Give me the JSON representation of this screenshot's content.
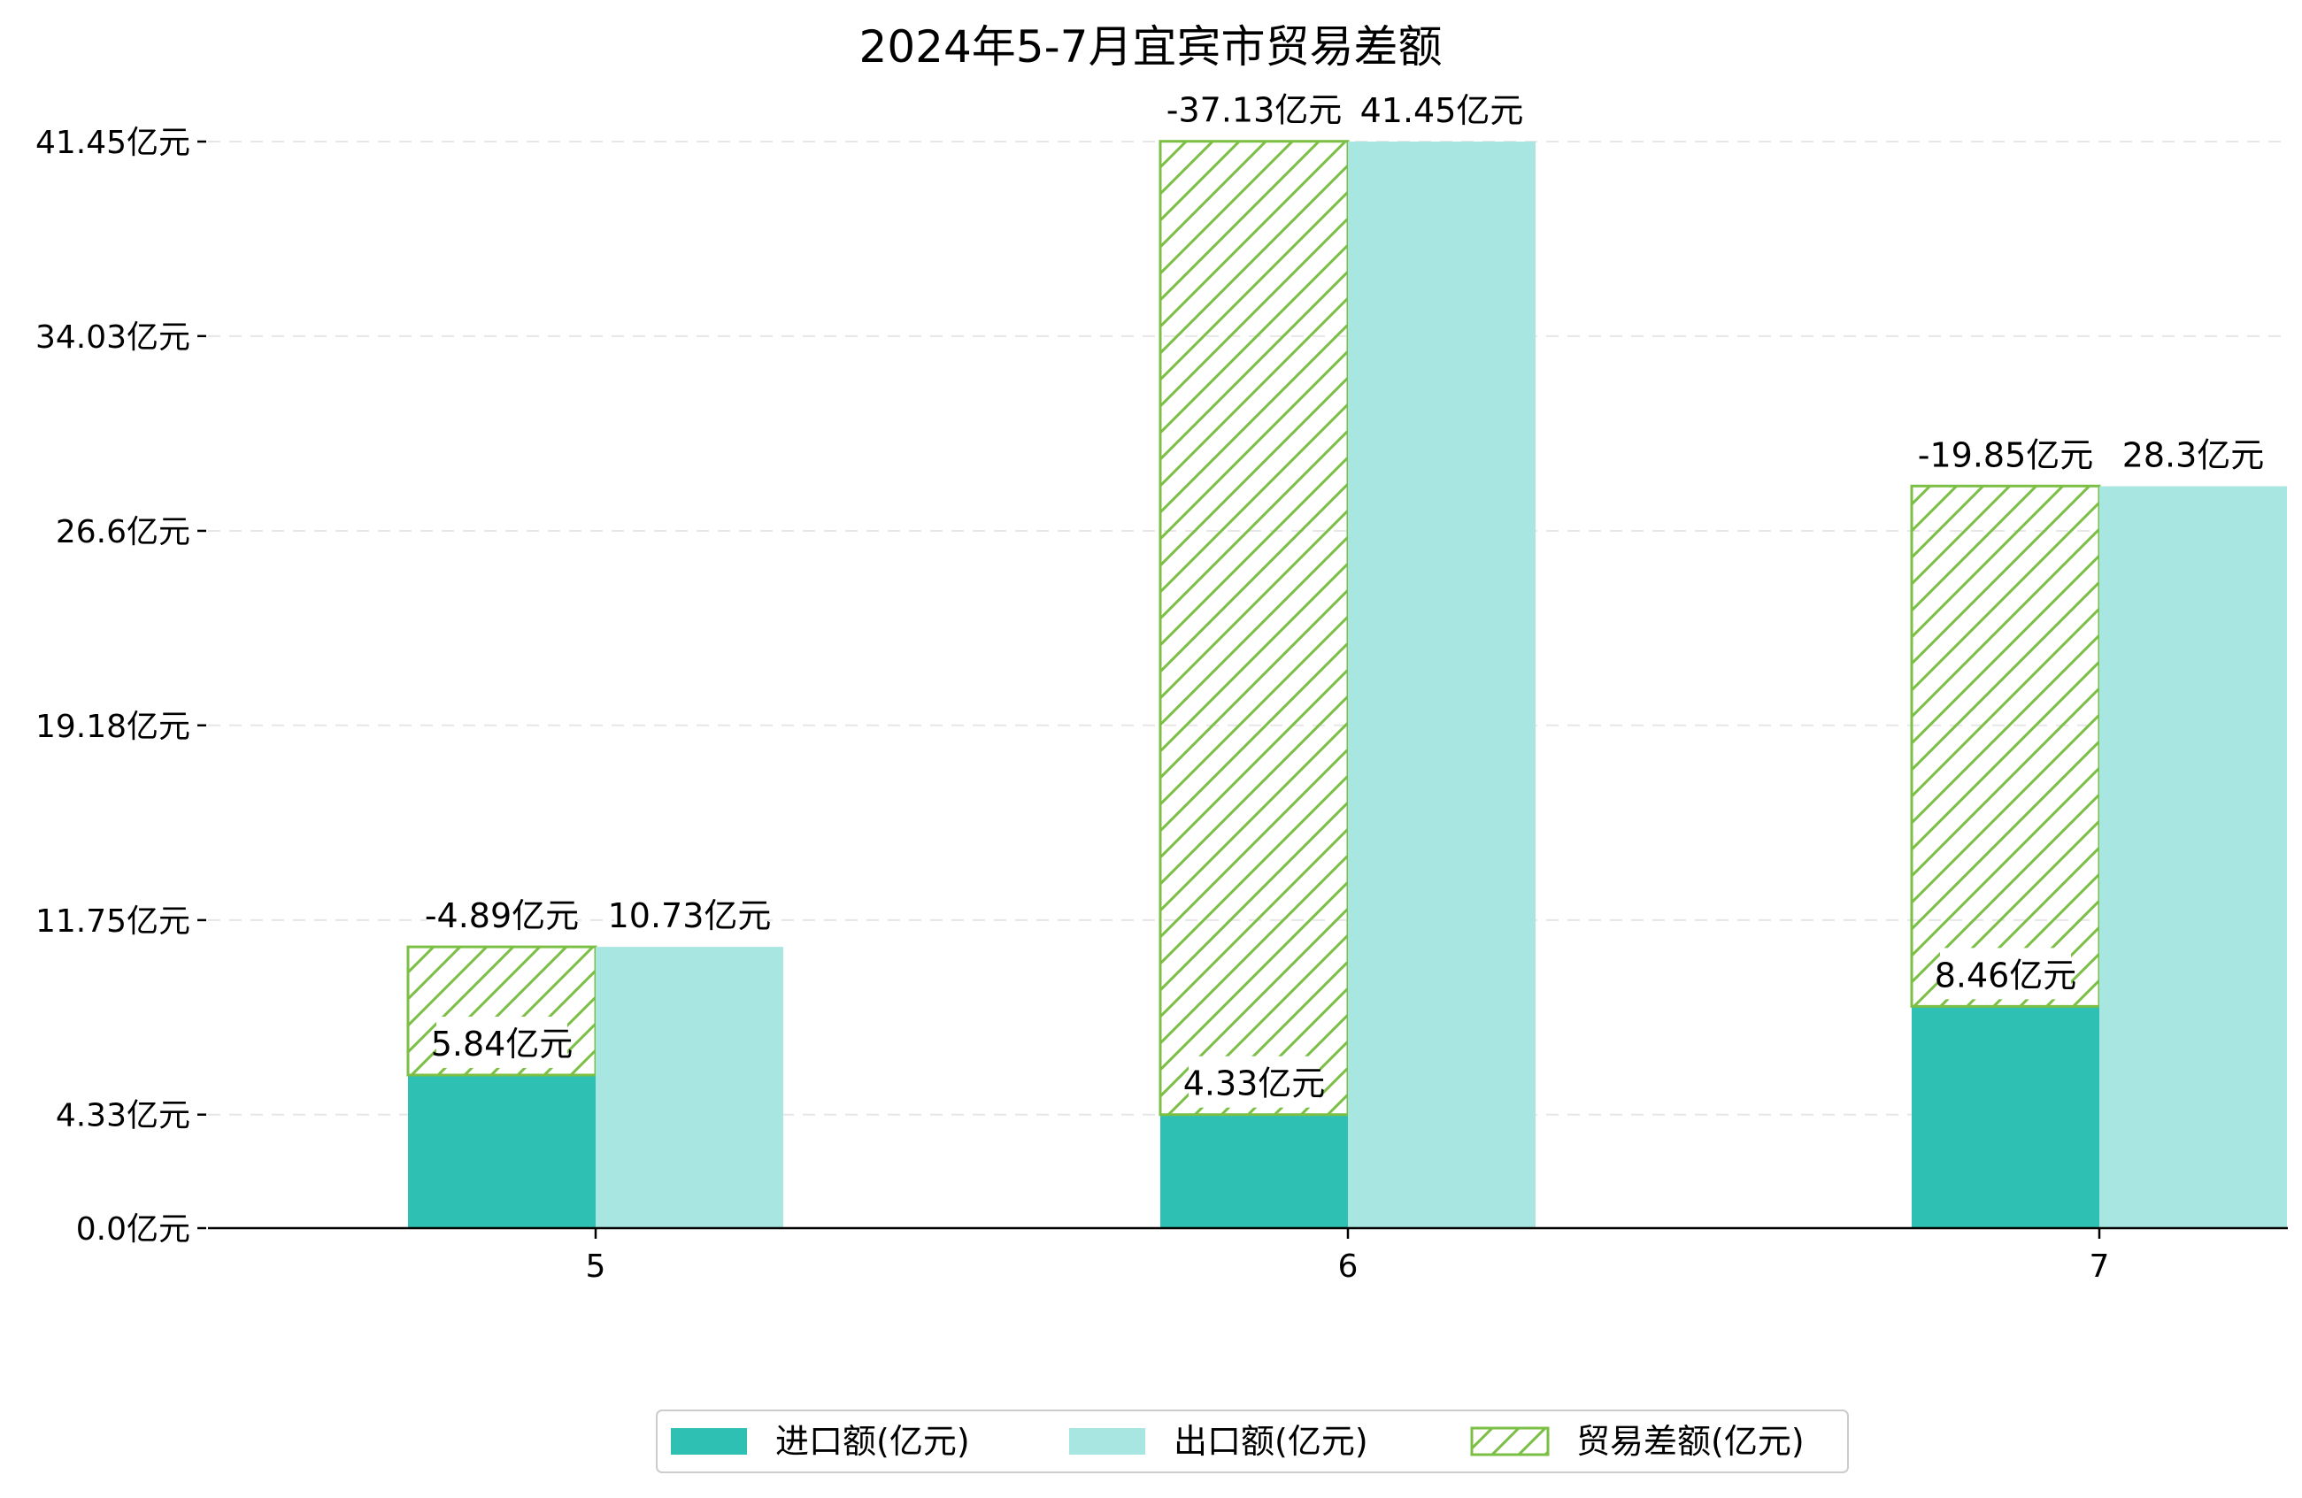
{
  "chart_data": {
    "type": "bar",
    "title": "2024年5-7月宜宾市贸易差额",
    "categories": [
      "5",
      "6",
      "7"
    ],
    "yticks": [
      0.0,
      4.33,
      11.75,
      19.18,
      26.6,
      34.03,
      41.45
    ],
    "ytick_labels": [
      "0.0亿元",
      "4.33亿元",
      "11.75亿元",
      "19.18亿元",
      "26.6亿元",
      "34.03亿元",
      "41.45亿元"
    ],
    "ylim": [
      0,
      41.45
    ],
    "grid": true,
    "legend_position": "bottom-center",
    "series": [
      {
        "name": "进口额(亿元)",
        "values": [
          5.84,
          4.33,
          8.46
        ],
        "labels": [
          "5.84亿元",
          "4.33亿元",
          "8.46亿元"
        ],
        "color": "#2fc0b4",
        "style": "solid"
      },
      {
        "name": "出口额(亿元)",
        "values": [
          10.73,
          41.45,
          28.3
        ],
        "labels": [
          "10.73亿元",
          "41.45亿元",
          "28.3亿元"
        ],
        "color": "#a8e6e1",
        "style": "solid"
      },
      {
        "name": "贸易差额(亿元)",
        "values": [
          -4.89,
          -37.13,
          -19.85
        ],
        "labels": [
          "-4.89亿元",
          "-37.13亿元",
          "-19.85亿元"
        ],
        "color": "#7bbf44",
        "style": "hatched",
        "stacked_on": "进口额(亿元)"
      }
    ]
  }
}
